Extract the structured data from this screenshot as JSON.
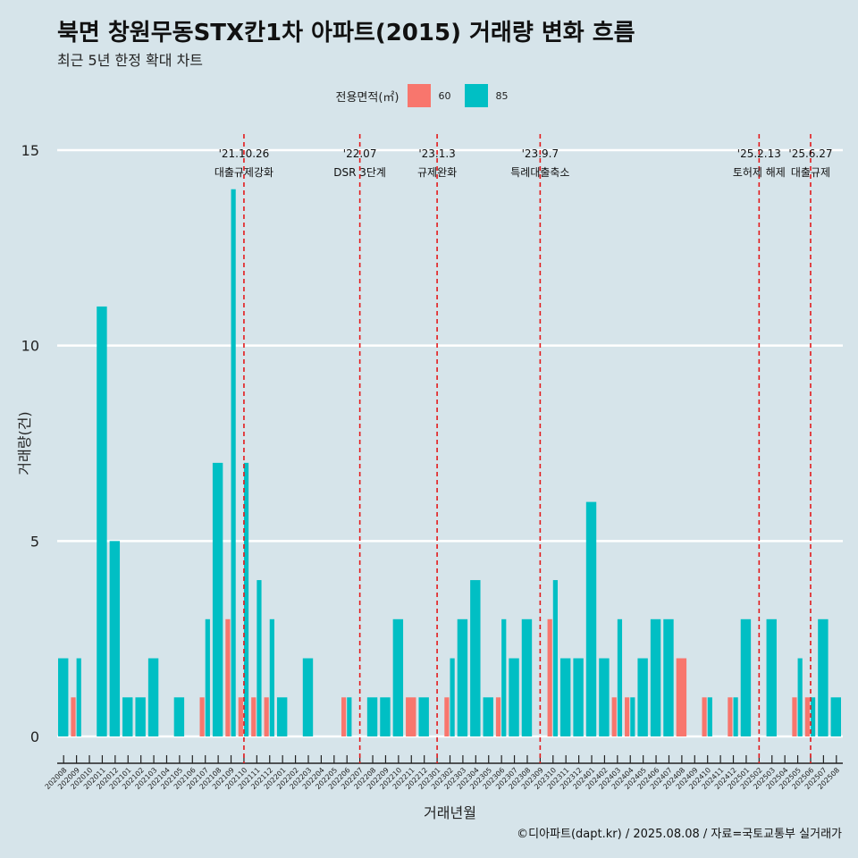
{
  "title": "북면 창원무동STX칸1차 아파트(2015) 거래량 변화 흐름",
  "subtitle": "최근 5년 한정 확대 차트",
  "caption": "©디아파트(dapt.kr) / 2025.08.08 / 자료=국토교통부 실거래가",
  "legend": {
    "title": "전용면적(㎡)",
    "items": [
      {
        "label": "60",
        "color": "#f8766d"
      },
      {
        "label": "85",
        "color": "#00bfc4"
      }
    ]
  },
  "chart_data": {
    "type": "bar",
    "stacked": true,
    "xlabel": "거래년월",
    "ylabel": "거래량(건)",
    "ylim": [
      0,
      15
    ],
    "yticks": [
      0,
      5,
      10,
      15
    ],
    "grid": "horizontal",
    "legend_position": "top",
    "categories": [
      "202008",
      "202009",
      "202010",
      "202011",
      "202012",
      "202101",
      "202102",
      "202103",
      "202104",
      "202105",
      "202106",
      "202107",
      "202108",
      "202109",
      "202110",
      "202111",
      "202112",
      "202201",
      "202202",
      "202203",
      "202204",
      "202205",
      "202206",
      "202207",
      "202208",
      "202209",
      "202210",
      "202211",
      "202212",
      "202301",
      "202302",
      "202303",
      "202304",
      "202305",
      "202306",
      "202307",
      "202308",
      "202309",
      "202310",
      "202311",
      "202312",
      "202401",
      "202402",
      "202403",
      "202404",
      "202405",
      "202406",
      "202407",
      "202408",
      "202409",
      "202410",
      "202411",
      "202412",
      "202501",
      "202502",
      "202503",
      "202504",
      "202505",
      "202506",
      "202507",
      "202508"
    ],
    "bars": [
      {
        "m": "202008",
        "s60": 0,
        "s85": 2
      },
      {
        "m": "202009",
        "s60": 1,
        "s85": 0
      },
      {
        "m": "202009",
        "s60": 0,
        "s85": 2
      },
      {
        "m": "202011",
        "s60": 0,
        "s85": 11
      },
      {
        "m": "202012",
        "s60": 0,
        "s85": 5
      },
      {
        "m": "202101",
        "s60": 0,
        "s85": 1
      },
      {
        "m": "202102",
        "s60": 0,
        "s85": 1
      },
      {
        "m": "202103",
        "s60": 0,
        "s85": 2
      },
      {
        "m": "202105",
        "s60": 0,
        "s85": 1
      },
      {
        "m": "202107",
        "s60": 1,
        "s85": 0
      },
      {
        "m": "202107",
        "s60": 0,
        "s85": 3
      },
      {
        "m": "202108",
        "s60": 0,
        "s85": 7
      },
      {
        "m": "202109",
        "s60": 3,
        "s85": 0
      },
      {
        "m": "202109",
        "s60": 0,
        "s85": 14
      },
      {
        "m": "202110",
        "s60": 1,
        "s85": 0
      },
      {
        "m": "202110",
        "s60": 0,
        "s85": 7
      },
      {
        "m": "202111",
        "s60": 1,
        "s85": 0
      },
      {
        "m": "202111",
        "s60": 0,
        "s85": 4
      },
      {
        "m": "202112",
        "s60": 1,
        "s85": 0
      },
      {
        "m": "202112",
        "s60": 0,
        "s85": 3
      },
      {
        "m": "202201",
        "s60": 0,
        "s85": 1
      },
      {
        "m": "202203",
        "s60": 0,
        "s85": 2
      },
      {
        "m": "202206",
        "s60": 1,
        "s85": 0
      },
      {
        "m": "202206",
        "s60": 0,
        "s85": 1
      },
      {
        "m": "202208",
        "s60": 0,
        "s85": 1
      },
      {
        "m": "202209",
        "s60": 0,
        "s85": 1
      },
      {
        "m": "202210",
        "s60": 0,
        "s85": 3
      },
      {
        "m": "202211",
        "s60": 1,
        "s85": 0
      },
      {
        "m": "202212",
        "s60": 0,
        "s85": 1
      },
      {
        "m": "202302",
        "s60": 1,
        "s85": 0
      },
      {
        "m": "202302",
        "s60": 0,
        "s85": 2
      },
      {
        "m": "202303",
        "s60": 0,
        "s85": 3
      },
      {
        "m": "202304",
        "s60": 0,
        "s85": 4
      },
      {
        "m": "202305",
        "s60": 0,
        "s85": 1
      },
      {
        "m": "202306",
        "s60": 1,
        "s85": 0
      },
      {
        "m": "202306",
        "s60": 0,
        "s85": 3
      },
      {
        "m": "202307",
        "s60": 0,
        "s85": 2
      },
      {
        "m": "202308",
        "s60": 0,
        "s85": 3
      },
      {
        "m": "202310",
        "s60": 3,
        "s85": 0
      },
      {
        "m": "202310",
        "s60": 0,
        "s85": 4
      },
      {
        "m": "202311",
        "s60": 0,
        "s85": 2
      },
      {
        "m": "202312",
        "s60": 0,
        "s85": 2
      },
      {
        "m": "202401",
        "s60": 0,
        "s85": 6
      },
      {
        "m": "202402",
        "s60": 0,
        "s85": 2
      },
      {
        "m": "202403",
        "s60": 1,
        "s85": 0
      },
      {
        "m": "202403",
        "s60": 0,
        "s85": 3
      },
      {
        "m": "202404",
        "s60": 1,
        "s85": 0
      },
      {
        "m": "202404",
        "s60": 0,
        "s85": 1
      },
      {
        "m": "202405",
        "s60": 0,
        "s85": 2
      },
      {
        "m": "202406",
        "s60": 0,
        "s85": 3
      },
      {
        "m": "202407",
        "s60": 0,
        "s85": 3
      },
      {
        "m": "202408",
        "s60": 2,
        "s85": 0
      },
      {
        "m": "202410",
        "s60": 1,
        "s85": 0
      },
      {
        "m": "202410",
        "s60": 0,
        "s85": 1
      },
      {
        "m": "202412",
        "s60": 1,
        "s85": 0
      },
      {
        "m": "202412",
        "s60": 0,
        "s85": 1
      },
      {
        "m": "202501",
        "s60": 0,
        "s85": 3
      },
      {
        "m": "202503",
        "s60": 0,
        "s85": 3
      },
      {
        "m": "202505",
        "s60": 1,
        "s85": 0
      },
      {
        "m": "202505",
        "s60": 0,
        "s85": 2
      },
      {
        "m": "202506",
        "s60": 1,
        "s85": 0
      },
      {
        "m": "202506",
        "s60": 0,
        "s85": 1
      },
      {
        "m": "202507",
        "s60": 0,
        "s85": 3
      },
      {
        "m": "202508",
        "s60": 0,
        "s85": 1
      }
    ],
    "events": [
      {
        "date": "'21.10.26",
        "label": "대출규제강화",
        "month": "202110"
      },
      {
        "date": "'22.07",
        "label": "DSR 3단계",
        "month": "202207"
      },
      {
        "date": "'23.1.3",
        "label": "규제완화",
        "month": "202301"
      },
      {
        "date": "'23.9.7",
        "label": "특례대출축소",
        "month": "202309"
      },
      {
        "date": "'25.2.13",
        "label": "토허제 해제",
        "month": "202502"
      },
      {
        "date": "'25.6.27",
        "label": "대출규제",
        "month": "202506"
      }
    ]
  }
}
